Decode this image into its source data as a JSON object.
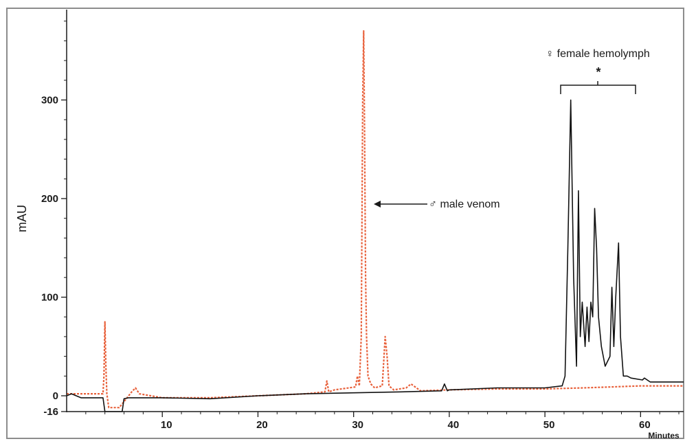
{
  "chart_data": {
    "type": "line",
    "title": "",
    "xlabel": "Minutes",
    "ylabel": "mAU",
    "xlim": [
      0,
      64.5
    ],
    "ylim": [
      -16,
      400
    ],
    "x_ticks": [
      10,
      20,
      30,
      40,
      50,
      60
    ],
    "y_ticks": [
      -16,
      0,
      100,
      200,
      300
    ],
    "x_tick_labels": [
      "10",
      "20",
      "30",
      "40",
      "50",
      "60"
    ],
    "y_tick_labels": [
      "-16",
      "0",
      "100",
      "200",
      "300"
    ],
    "grid": false,
    "series": [
      {
        "name": "♂ male venom",
        "color": "#e8603a",
        "style": "dotted",
        "x": [
          0,
          3.8,
          3.9,
          4.0,
          4.1,
          4.2,
          4.4,
          5.5,
          6.8,
          7.2,
          7.6,
          10,
          15,
          20,
          25,
          27.0,
          27.2,
          27.4,
          28,
          29.5,
          30.2,
          30.4,
          30.6,
          30.8,
          30.95,
          31.05,
          31.15,
          31.25,
          31.35,
          31.5,
          31.8,
          32.2,
          33.0,
          33.3,
          33.5,
          33.7,
          34.2,
          35.5,
          36.0,
          37,
          40,
          45,
          50,
          54,
          57,
          60,
          64.5
        ],
        "y": [
          2,
          2,
          20,
          75,
          30,
          2,
          -12,
          -12,
          4,
          8,
          2,
          -2,
          -2,
          0,
          2,
          4,
          15,
          4,
          6,
          8,
          9,
          20,
          10,
          60,
          300,
          370,
          260,
          120,
          60,
          20,
          12,
          8,
          10,
          60,
          40,
          10,
          6,
          8,
          12,
          5,
          6,
          7,
          7,
          8,
          9,
          10,
          10
        ]
      },
      {
        "name": "♀ female hemolymph",
        "color": "#111111",
        "style": "solid",
        "x": [
          0,
          0.5,
          1.5,
          3.8,
          4.0,
          4.1,
          5.8,
          6.0,
          6.5,
          10,
          15,
          20,
          25,
          30,
          35,
          39.2,
          39.5,
          39.8,
          40,
          45,
          50,
          51.8,
          52.1,
          52.4,
          52.7,
          53.0,
          53.3,
          53.5,
          53.7,
          53.9,
          54.2,
          54.4,
          54.6,
          54.8,
          55.0,
          55.2,
          55.4,
          55.6,
          55.9,
          56.3,
          56.8,
          57.0,
          57.2,
          57.4,
          57.7,
          57.9,
          58.2,
          58.6,
          59.0,
          60.2,
          60.4,
          61,
          64.5
        ],
        "y": [
          0,
          2,
          -2,
          -2,
          -16,
          -16,
          -16,
          -3,
          -2,
          -2,
          -3,
          0,
          2,
          3,
          4,
          5,
          12,
          5,
          6,
          8,
          8,
          10,
          20,
          150,
          300,
          120,
          30,
          208,
          60,
          95,
          50,
          90,
          55,
          95,
          80,
          190,
          150,
          80,
          50,
          30,
          40,
          110,
          50,
          100,
          155,
          60,
          20,
          20,
          18,
          16,
          18,
          14,
          14
        ]
      }
    ],
    "annotations": [
      {
        "text": "♂ male venom",
        "points_to_x": 31.2,
        "points_to_y": 195
      },
      {
        "text": "♀ female hemolymph",
        "bracket_from_x": 51.5,
        "bracket_to_x": 59.5
      },
      {
        "text": "*"
      }
    ]
  }
}
